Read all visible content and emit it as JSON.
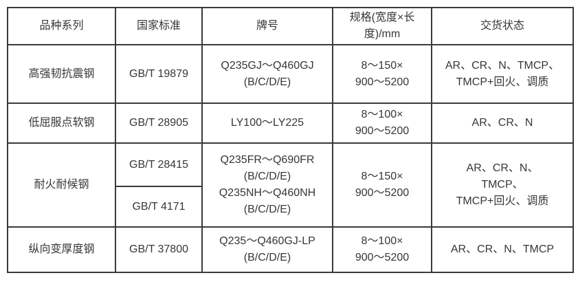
{
  "table": {
    "headers": {
      "series": "品种系列",
      "standard": "国家标准",
      "grade": "牌号",
      "spec_lines": [
        "规格(宽度×长",
        "度)/mm"
      ],
      "delivery": "交货状态"
    },
    "rows": [
      {
        "series": "高强韧抗震钢",
        "standard": "GB/T 19879",
        "grade_lines": [
          "Q235GJ～Q460GJ",
          "(B/C/D/E)"
        ],
        "spec_lines": [
          "8～150×",
          "900～5200"
        ],
        "delivery_lines": [
          "AR、CR、N、TMCP、",
          "TMCP+回火、调质"
        ]
      },
      {
        "series": "低屈服点软钢",
        "standard": "GB/T 28905",
        "grade_lines": [
          "LY100～LY225"
        ],
        "spec_lines": [
          "8～100×",
          "900～5200"
        ],
        "delivery_lines": [
          "AR、CR、N"
        ]
      },
      {
        "series": "耐火耐候钢",
        "standards": [
          "GB/T 28415",
          "GB/T 4171"
        ],
        "grade_lines": [
          "Q235FR～Q690FR",
          "(B/C/D/E)",
          "Q235NH～Q460NH",
          "(B/C/D/E)"
        ],
        "spec_lines": [
          "8～150×",
          "900～5200"
        ],
        "delivery_lines": [
          "AR、CR、N、",
          "TMCP、",
          "TMCP+回火、调质"
        ]
      },
      {
        "series": "纵向变厚度钢",
        "standard": "GB/T 37800",
        "grade_lines": [
          "Q235～Q460GJ-LP",
          "(B/C/D/E)"
        ],
        "spec_lines": [
          "8～100×",
          "900～5200"
        ],
        "delivery_lines": [
          "AR、CR、N、TMCP"
        ]
      }
    ],
    "border_color": "#3a3a3a",
    "text_color": "#363636"
  }
}
